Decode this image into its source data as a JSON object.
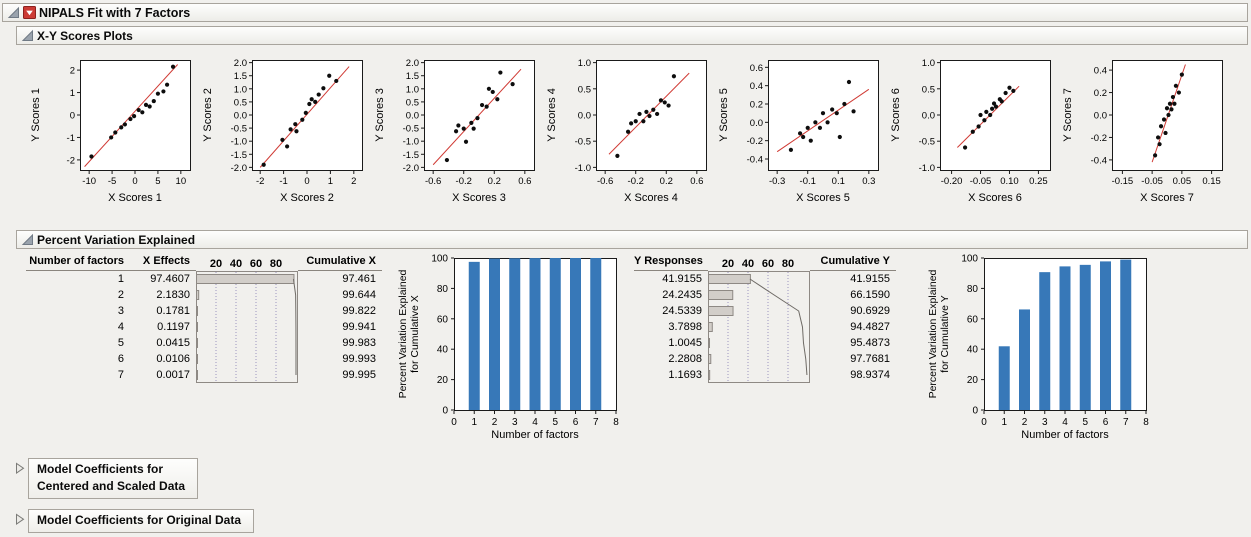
{
  "window": {
    "title": "NIPALS Fit with 7 Factors"
  },
  "sections": {
    "scores_title": "X-Y Scores Plots",
    "variation_title": "Percent Variation Explained",
    "coef_centered_line1": "Model Coefficients for",
    "coef_centered_line2": "Centered and Scaled Data",
    "coef_original_title": "Model Coefficients for Original Data"
  },
  "icons": {
    "disclosure_open": "open-disclosure-triangle",
    "disclosure_closed": "closed-disclosure-triangle",
    "red_menu": "red-triangle-menu"
  },
  "colors": {
    "bar_blue": "#3778B8",
    "fit_line_red": "#D03A34",
    "inline_bar_fill": "#D2CEC9",
    "inline_bar_stroke": "#8E8984",
    "grid_dotted": "#9B93BE",
    "band_border": "#A8A49D"
  },
  "variation_table": {
    "col_number": "Number of factors",
    "col_x_effects": "X Effects",
    "col_cumulative_x": "Cumulative X",
    "col_y_responses": "Y Responses",
    "col_cumulative_y": "Cumulative Y",
    "inline_axis_ticks": [
      "20",
      "40",
      "60",
      "80"
    ],
    "factors": [
      "1",
      "2",
      "3",
      "4",
      "5",
      "6",
      "7"
    ],
    "x_effects": [
      "97.4607",
      "2.1830",
      "0.1781",
      "0.1197",
      "0.0415",
      "0.0106",
      "0.0017"
    ],
    "cumulative_x": [
      "97.461",
      "99.644",
      "99.822",
      "99.941",
      "99.983",
      "99.993",
      "99.995"
    ],
    "y_responses": [
      "41.9155",
      "24.2435",
      "24.5339",
      "3.7898",
      "1.0045",
      "2.2808",
      "1.1693"
    ],
    "cumulative_y": [
      "41.9155",
      "66.1590",
      "90.6929",
      "94.4827",
      "95.4873",
      "97.7681",
      "98.9374"
    ]
  },
  "chart_data": [
    {
      "type": "scatter",
      "id": "scores-1",
      "xlabel": "X Scores 1",
      "ylabel": "Y Scores 1",
      "xlim": [
        -12,
        12
      ],
      "ylim": [
        -2.45,
        2.45
      ],
      "xticks": [
        -10,
        -5,
        0,
        5,
        10
      ],
      "xtick_labels": [
        "-10",
        "-5",
        "0",
        "5",
        "10"
      ],
      "yticks": [
        -2,
        -1,
        0,
        1,
        2
      ],
      "ytick_labels": [
        "-2",
        "-1",
        "0",
        "1",
        "2"
      ],
      "fit": [
        [
          -11,
          -2.3
        ],
        [
          9.3,
          2.25
        ]
      ],
      "points": [
        [
          -9.5,
          -1.85
        ],
        [
          -5.2,
          -1.0
        ],
        [
          -4.3,
          -0.78
        ],
        [
          -3.0,
          -0.55
        ],
        [
          -2.2,
          -0.42
        ],
        [
          -1.0,
          -0.18
        ],
        [
          -0.2,
          -0.05
        ],
        [
          0.8,
          0.22
        ],
        [
          1.6,
          0.12
        ],
        [
          2.4,
          0.45
        ],
        [
          3.2,
          0.38
        ],
        [
          4.1,
          0.62
        ],
        [
          5.0,
          0.95
        ],
        [
          6.2,
          1.05
        ],
        [
          7.0,
          1.35
        ],
        [
          8.3,
          2.15
        ]
      ]
    },
    {
      "type": "scatter",
      "id": "scores-2",
      "xlabel": "X Scores 2",
      "ylabel": "Y Scores 2",
      "xlim": [
        -2.35,
        2.35
      ],
      "ylim": [
        -2.1,
        2.1
      ],
      "xticks": [
        -2,
        -1,
        0,
        1,
        2
      ],
      "xtick_labels": [
        "-2",
        "-1",
        "0",
        "1",
        "2"
      ],
      "yticks": [
        -2,
        -1.5,
        -1,
        -0.5,
        0,
        0.5,
        1,
        1.5,
        2
      ],
      "ytick_labels": [
        "-2.0",
        "-1.5",
        "-1.0",
        "-0.5",
        "0.0",
        "0.5",
        "1.0",
        "1.5",
        "2.0"
      ],
      "fit": [
        [
          -2.0,
          -2.0
        ],
        [
          1.8,
          1.85
        ]
      ],
      "points": [
        [
          -1.85,
          -1.9
        ],
        [
          -1.05,
          -0.95
        ],
        [
          -0.85,
          -1.2
        ],
        [
          -0.7,
          -0.55
        ],
        [
          -0.5,
          -0.35
        ],
        [
          -0.45,
          -0.62
        ],
        [
          -0.2,
          -0.18
        ],
        [
          -0.05,
          0.08
        ],
        [
          0.1,
          0.42
        ],
        [
          0.2,
          0.6
        ],
        [
          0.35,
          0.5
        ],
        [
          0.5,
          0.78
        ],
        [
          0.7,
          1.02
        ],
        [
          0.95,
          1.5
        ],
        [
          1.25,
          1.3
        ]
      ]
    },
    {
      "type": "scatter",
      "id": "scores-3",
      "xlabel": "X Scores 3",
      "ylabel": "Y Scores 3",
      "xlim": [
        -0.72,
        0.72
      ],
      "ylim": [
        -2.1,
        2.1
      ],
      "xticks": [
        -0.6,
        -0.2,
        0.2,
        0.6
      ],
      "xtick_labels": [
        "-0.6",
        "-0.2",
        "0.2",
        "0.6"
      ],
      "yticks": [
        -2,
        -1.5,
        -1,
        -0.5,
        0,
        0.5,
        1,
        1.5,
        2
      ],
      "ytick_labels": [
        "-2.0",
        "-1.5",
        "-1.0",
        "-0.5",
        "0.0",
        "0.5",
        "1.0",
        "1.5",
        "2.0"
      ],
      "fit": [
        [
          -0.6,
          -1.9
        ],
        [
          0.55,
          1.75
        ]
      ],
      "points": [
        [
          -0.42,
          -1.72
        ],
        [
          -0.3,
          -0.62
        ],
        [
          -0.27,
          -0.4
        ],
        [
          -0.2,
          -0.52
        ],
        [
          -0.17,
          -1.02
        ],
        [
          -0.1,
          -0.3
        ],
        [
          -0.07,
          -0.52
        ],
        [
          -0.02,
          -0.12
        ],
        [
          0.04,
          0.38
        ],
        [
          0.1,
          0.32
        ],
        [
          0.13,
          1.0
        ],
        [
          0.18,
          0.88
        ],
        [
          0.24,
          0.6
        ],
        [
          0.28,
          1.62
        ],
        [
          0.44,
          1.18
        ]
      ]
    },
    {
      "type": "scatter",
      "id": "scores-4",
      "xlabel": "X Scores 4",
      "ylabel": "Y Scores 4",
      "xlim": [
        -0.72,
        0.72
      ],
      "ylim": [
        -1.05,
        1.05
      ],
      "xticks": [
        -0.6,
        -0.2,
        0.2,
        0.6
      ],
      "xtick_labels": [
        "-0.6",
        "-0.2",
        "0.2",
        "0.6"
      ],
      "yticks": [
        -1,
        -0.5,
        0,
        0.5,
        1
      ],
      "ytick_labels": [
        "-1.0",
        "-0.5",
        "0.0",
        "0.5",
        "1.0"
      ],
      "fit": [
        [
          -0.55,
          -0.75
        ],
        [
          0.5,
          0.8
        ]
      ],
      "points": [
        [
          -0.44,
          -0.78
        ],
        [
          -0.3,
          -0.32
        ],
        [
          -0.26,
          -0.16
        ],
        [
          -0.2,
          -0.12
        ],
        [
          -0.15,
          0.02
        ],
        [
          -0.1,
          -0.12
        ],
        [
          -0.06,
          0.06
        ],
        [
          -0.02,
          -0.02
        ],
        [
          0.03,
          0.1
        ],
        [
          0.08,
          0.02
        ],
        [
          0.13,
          0.28
        ],
        [
          0.18,
          0.24
        ],
        [
          0.23,
          0.18
        ],
        [
          0.3,
          0.74
        ]
      ]
    },
    {
      "type": "scatter",
      "id": "scores-5",
      "xlabel": "X Scores 5",
      "ylabel": "Y Scores 5",
      "xlim": [
        -0.36,
        0.36
      ],
      "ylim": [
        -0.52,
        0.68
      ],
      "xticks": [
        -0.3,
        -0.1,
        0.1,
        0.3
      ],
      "xtick_labels": [
        "-0.3",
        "-0.1",
        "0.1",
        "0.3"
      ],
      "yticks": [
        -0.4,
        -0.2,
        0,
        0.2,
        0.4,
        0.6
      ],
      "ytick_labels": [
        "-0.4",
        "-0.2",
        "0.0",
        "0.2",
        "0.4",
        "0.6"
      ],
      "fit": [
        [
          -0.3,
          -0.32
        ],
        [
          0.3,
          0.36
        ]
      ],
      "points": [
        [
          -0.21,
          -0.3
        ],
        [
          -0.15,
          -0.12
        ],
        [
          -0.13,
          -0.16
        ],
        [
          -0.1,
          -0.06
        ],
        [
          -0.08,
          -0.2
        ],
        [
          -0.05,
          0.0
        ],
        [
          -0.02,
          -0.06
        ],
        [
          0.0,
          0.1
        ],
        [
          0.03,
          0.0
        ],
        [
          0.06,
          0.14
        ],
        [
          0.09,
          0.1
        ],
        [
          0.11,
          -0.16
        ],
        [
          0.14,
          0.2
        ],
        [
          0.17,
          0.44
        ],
        [
          0.2,
          0.12
        ]
      ]
    },
    {
      "type": "scatter",
      "id": "scores-6",
      "xlabel": "X Scores 6",
      "ylabel": "Y Scores 6",
      "xlim": [
        -0.26,
        0.31
      ],
      "ylim": [
        -1.05,
        1.05
      ],
      "xticks": [
        -0.2,
        -0.05,
        0.1,
        0.25
      ],
      "xtick_labels": [
        "-0.20",
        "-0.05",
        "0.10",
        "0.25"
      ],
      "yticks": [
        -1,
        -0.5,
        0,
        0.5,
        1
      ],
      "ytick_labels": [
        "-1.0",
        "-0.5",
        "0.0",
        "0.5",
        "1.0"
      ],
      "fit": [
        [
          -0.17,
          -0.62
        ],
        [
          0.15,
          0.55
        ]
      ],
      "points": [
        [
          -0.13,
          -0.62
        ],
        [
          -0.09,
          -0.32
        ],
        [
          -0.06,
          -0.22
        ],
        [
          -0.05,
          0.0
        ],
        [
          -0.03,
          -0.1
        ],
        [
          -0.02,
          0.06
        ],
        [
          0.0,
          0.0
        ],
        [
          0.01,
          0.12
        ],
        [
          0.02,
          0.22
        ],
        [
          0.03,
          0.16
        ],
        [
          0.05,
          0.3
        ],
        [
          0.06,
          0.26
        ],
        [
          0.08,
          0.42
        ],
        [
          0.1,
          0.52
        ],
        [
          0.12,
          0.46
        ]
      ]
    },
    {
      "type": "scatter",
      "id": "scores-7",
      "xlabel": "X Scores 7",
      "ylabel": "Y Scores 7",
      "xlim": [
        -0.185,
        0.185
      ],
      "ylim": [
        -0.49,
        0.49
      ],
      "xticks": [
        -0.15,
        -0.05,
        0.05,
        0.15
      ],
      "xtick_labels": [
        "-0.15",
        "-0.05",
        "0.05",
        "0.15"
      ],
      "yticks": [
        -0.4,
        -0.2,
        0,
        0.2,
        0.4
      ],
      "ytick_labels": [
        "-0.4",
        "-0.2",
        "0.0",
        "0.2",
        "0.4"
      ],
      "fit": [
        [
          -0.05,
          -0.42
        ],
        [
          0.062,
          0.45
        ]
      ],
      "points": [
        [
          -0.04,
          -0.36
        ],
        [
          -0.03,
          -0.2
        ],
        [
          -0.025,
          -0.26
        ],
        [
          -0.02,
          -0.1
        ],
        [
          -0.01,
          -0.04
        ],
        [
          -0.005,
          -0.16
        ],
        [
          0.0,
          0.06
        ],
        [
          0.005,
          0.0
        ],
        [
          0.01,
          0.1
        ],
        [
          0.015,
          0.05
        ],
        [
          0.02,
          0.16
        ],
        [
          0.025,
          0.1
        ],
        [
          0.03,
          0.26
        ],
        [
          0.04,
          0.2
        ],
        [
          0.05,
          0.36
        ]
      ]
    },
    {
      "type": "bar",
      "id": "cumulative-x",
      "xlabel": "Number of factors",
      "ylabel_line1": "Percent Variation Explained",
      "ylabel_line2": "for Cumulative X",
      "xlim": [
        0,
        8
      ],
      "ylim": [
        0,
        100
      ],
      "xticks": [
        0,
        1,
        2,
        3,
        4,
        5,
        6,
        7,
        8
      ],
      "yticks": [
        0,
        20,
        40,
        60,
        80,
        100
      ],
      "categories": [
        1,
        2,
        3,
        4,
        5,
        6,
        7
      ],
      "values": [
        97.461,
        99.644,
        99.822,
        99.941,
        99.983,
        99.993,
        99.995
      ]
    },
    {
      "type": "bar",
      "id": "cumulative-y",
      "xlabel": "Number of factors",
      "ylabel_line1": "Percent Variation Explained",
      "ylabel_line2": "for Cumulative Y",
      "xlim": [
        0,
        8
      ],
      "ylim": [
        0,
        100
      ],
      "xticks": [
        0,
        1,
        2,
        3,
        4,
        5,
        6,
        7,
        8
      ],
      "yticks": [
        0,
        20,
        40,
        60,
        80,
        100
      ],
      "categories": [
        1,
        2,
        3,
        4,
        5,
        6,
        7
      ],
      "values": [
        41.9155,
        66.159,
        90.6929,
        94.4827,
        95.4873,
        97.7681,
        98.9374
      ]
    },
    {
      "type": "inline-bar",
      "id": "x-effects-inline",
      "ticks": [
        20,
        40,
        60,
        80
      ],
      "values": [
        97.4607,
        2.183,
        0.1781,
        0.1197,
        0.0415,
        0.0106,
        0.0017
      ],
      "cumulative": [
        97.461,
        99.644,
        99.822,
        99.941,
        99.983,
        99.993,
        99.995
      ]
    },
    {
      "type": "inline-bar",
      "id": "y-responses-inline",
      "ticks": [
        20,
        40,
        60,
        80
      ],
      "values": [
        41.9155,
        24.2435,
        24.5339,
        3.7898,
        1.0045,
        2.2808,
        1.1693
      ],
      "cumulative": [
        41.9155,
        66.159,
        90.6929,
        94.4827,
        95.4873,
        97.7681,
        98.9374
      ]
    }
  ]
}
